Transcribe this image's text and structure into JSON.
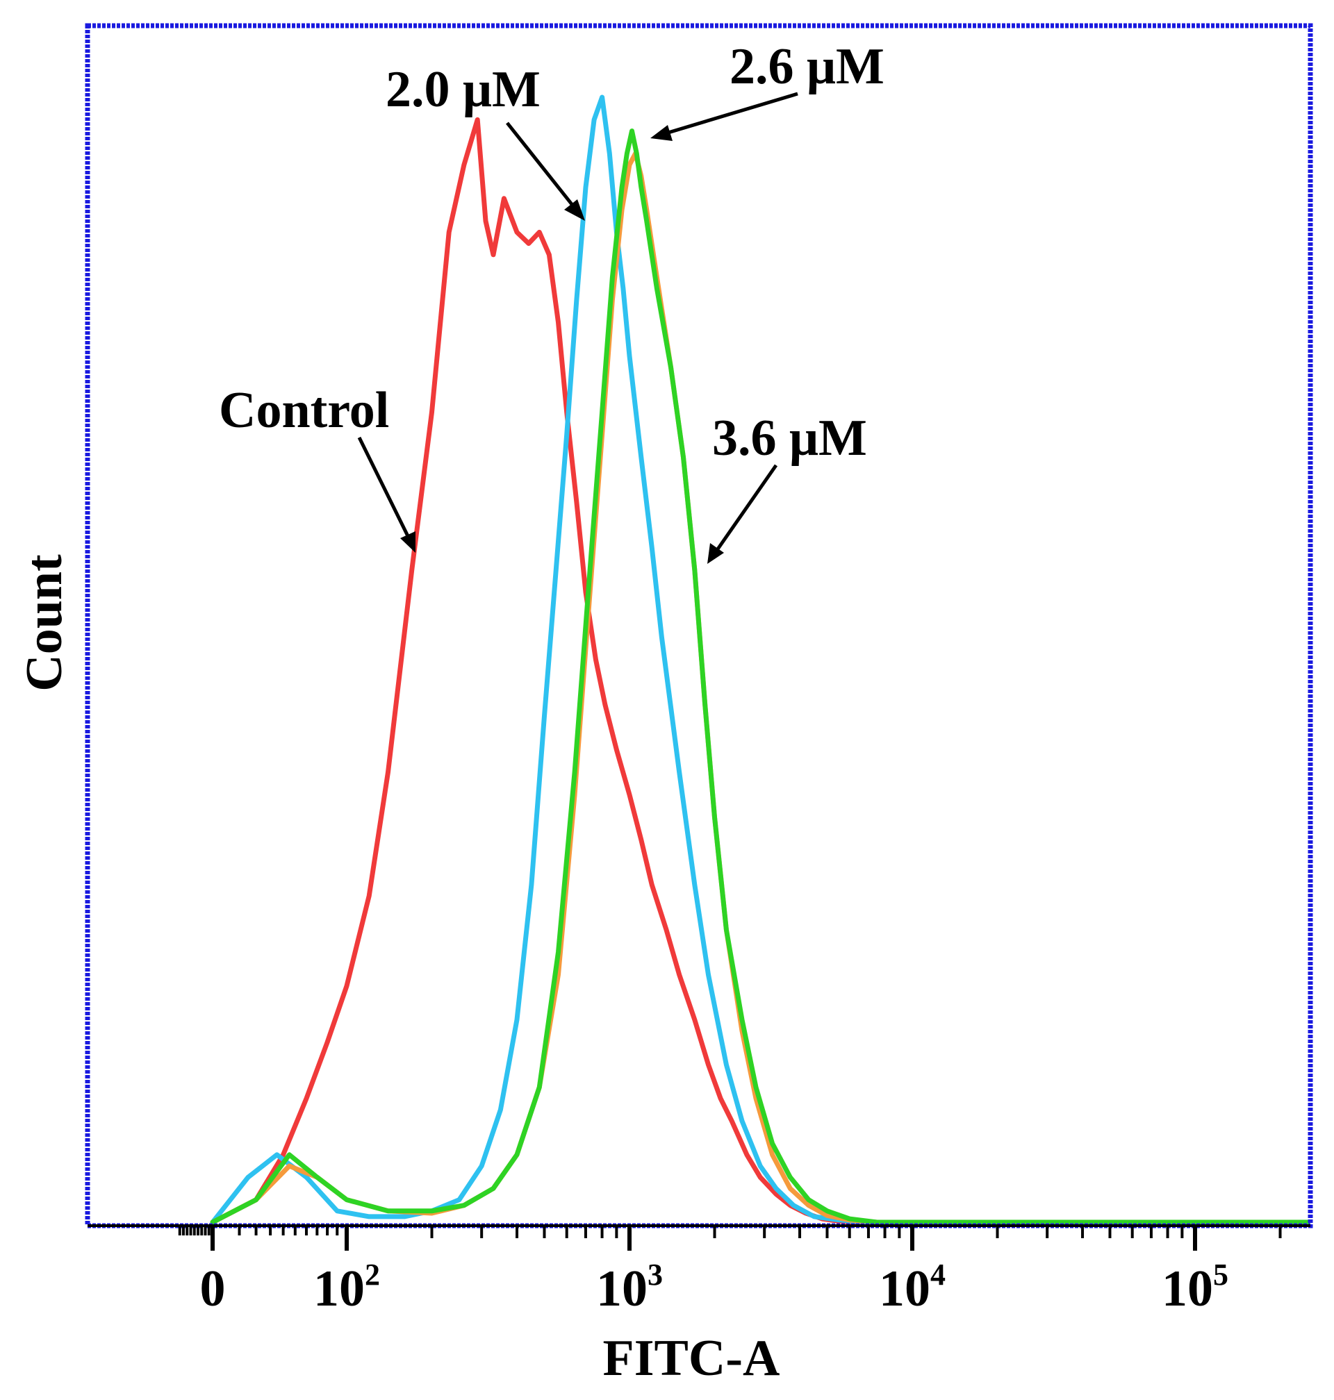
{
  "chart_data": {
    "type": "line",
    "title": "",
    "xlabel": "FITC-A",
    "ylabel": "Count",
    "x_scale": "biexponential",
    "x_ticks": [
      {
        "value": 0,
        "base": "0",
        "exp": ""
      },
      {
        "value": 100,
        "base": "10",
        "exp": "2"
      },
      {
        "value": 1000,
        "base": "10",
        "exp": "3"
      },
      {
        "value": 10000,
        "base": "10",
        "exp": "4"
      },
      {
        "value": 100000,
        "base": "10",
        "exp": "5"
      }
    ],
    "y_tick_labels": [],
    "xlim": [
      -60,
      250000
    ],
    "ylim": [
      0,
      100
    ],
    "frame_color": "#1a1adf",
    "series": [
      {
        "name": "Control",
        "color": "#f03a3a",
        "x": [
          0,
          20,
          40,
          60,
          80,
          100,
          120,
          140,
          170,
          200,
          230,
          260,
          290,
          310,
          330,
          360,
          400,
          440,
          480,
          520,
          560,
          600,
          650,
          700,
          760,
          820,
          900,
          1000,
          1100,
          1200,
          1350,
          1500,
          1700,
          1900,
          2100,
          2300,
          2600,
          2900,
          3300,
          3700,
          4200,
          4800,
          5500,
          6500,
          8000,
          12000,
          250000
        ],
        "y": [
          0,
          2,
          6,
          11,
          16,
          21,
          29,
          40,
          58,
          72,
          88,
          94,
          98,
          89,
          86,
          91,
          88,
          87,
          88,
          86,
          80,
          72,
          64,
          56,
          50,
          46,
          42,
          38,
          34,
          30,
          26,
          22,
          18,
          14,
          11,
          9,
          6,
          4,
          2.5,
          1.5,
          0.8,
          0.3,
          0.1,
          0,
          0,
          0,
          0
        ]
      },
      {
        "name": "2.0 μM",
        "color": "#2ec1f0",
        "x": [
          0,
          15,
          35,
          60,
          90,
          120,
          160,
          200,
          250,
          300,
          350,
          400,
          450,
          500,
          550,
          600,
          650,
          700,
          750,
          800,
          850,
          900,
          950,
          1000,
          1100,
          1200,
          1300,
          1500,
          1700,
          1900,
          2200,
          2500,
          2900,
          3300,
          3800,
          4500,
          5500,
          7000,
          250000
        ],
        "y": [
          0,
          4,
          6,
          4,
          1,
          0.5,
          0.5,
          1,
          2,
          5,
          10,
          18,
          30,
          45,
          58,
          70,
          82,
          92,
          98,
          100,
          95,
          88,
          83,
          77,
          68,
          60,
          52,
          40,
          30,
          22,
          14,
          9,
          5,
          3,
          1.5,
          0.5,
          0.2,
          0,
          0
        ]
      },
      {
        "name": "3.6 μM",
        "color": "#f59a3c",
        "x": [
          0,
          20,
          45,
          70,
          100,
          140,
          200,
          260,
          330,
          400,
          480,
          560,
          640,
          720,
          800,
          870,
          940,
          1000,
          1050,
          1100,
          1150,
          1250,
          1400,
          1550,
          1700,
          1850,
          2000,
          2200,
          2500,
          2800,
          3200,
          3700,
          4300,
          5000,
          6000,
          7500,
          250000
        ],
        "y": [
          0,
          2,
          5,
          4,
          2,
          1,
          0.8,
          1.5,
          3,
          6,
          12,
          22,
          38,
          55,
          70,
          82,
          90,
          94,
          95,
          93,
          90,
          84,
          76,
          68,
          58,
          46,
          36,
          26,
          17,
          11,
          6,
          3,
          1.5,
          0.6,
          0.2,
          0,
          0
        ]
      },
      {
        "name": "2.6 μM",
        "color": "#2ed324",
        "x": [
          0,
          20,
          45,
          70,
          100,
          140,
          200,
          260,
          330,
          400,
          480,
          560,
          640,
          720,
          800,
          870,
          940,
          980,
          1020,
          1060,
          1100,
          1150,
          1250,
          1400,
          1550,
          1700,
          1850,
          2000,
          2200,
          2500,
          2800,
          3200,
          3700,
          4300,
          5000,
          6000,
          7500,
          250000
        ],
        "y": [
          0,
          2,
          6,
          4,
          2,
          1,
          1,
          1.5,
          3,
          6,
          12,
          24,
          40,
          57,
          72,
          84,
          92,
          95,
          97,
          95,
          92,
          89,
          83,
          76,
          68,
          58,
          46,
          36,
          26,
          18,
          12,
          7,
          4,
          2,
          1,
          0.3,
          0,
          0
        ]
      }
    ],
    "annotations": [
      {
        "text": "2.0 μM",
        "target_series": "2.0 μM"
      },
      {
        "text": "2.6 μM",
        "target_series": "2.6 μM"
      },
      {
        "text": "Control",
        "target_series": "Control"
      },
      {
        "text": "3.6 μM",
        "target_series": "3.6 μM"
      }
    ]
  }
}
